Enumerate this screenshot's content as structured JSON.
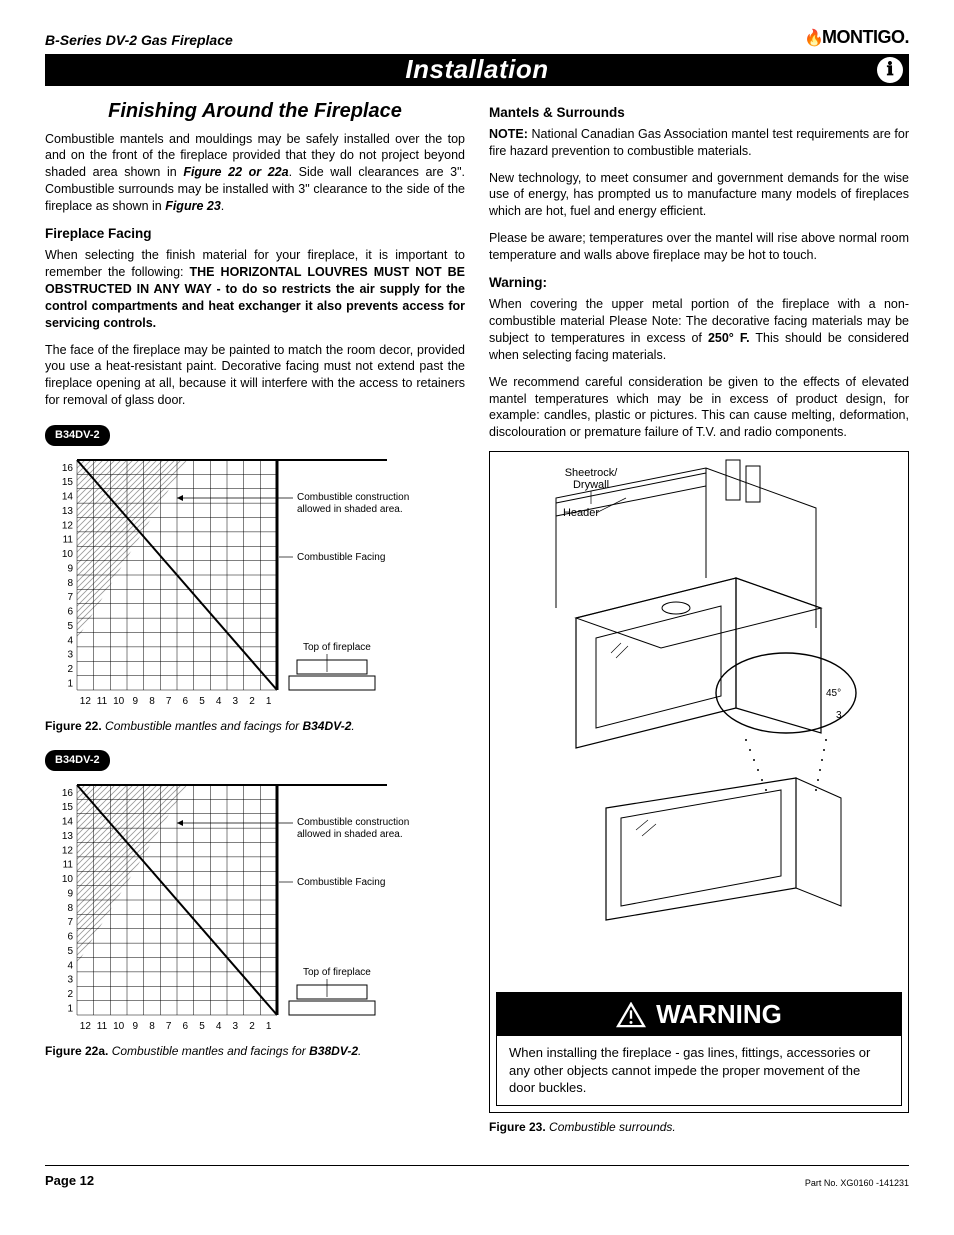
{
  "header": {
    "product": "B-Series DV-2 Gas Fireplace",
    "brand_flame": "(",
    "brand": "MONTIGO",
    "brand_dot": "."
  },
  "bar": {
    "title": "Installation",
    "icon": "i"
  },
  "left": {
    "section_title": "Finishing Around the Fireplace",
    "intro": "Combustible mantels and mouldings may be safely installed over the top and on the front of the fireplace provided that they do not project beyond shaded area shown in ",
    "intro_ref": "Figure 22 or 22a",
    "intro_after": ". Side wall clearances are 3\". Combustible surrounds may be installed with 3\" clearance to the side of the fireplace as shown in ",
    "intro_ref2": "Figure 23",
    "intro_end": ".",
    "facing_heading": "Fireplace Facing",
    "facing_p1_a": "When selecting the finish material for your fireplace, it is important to remember the following: ",
    "facing_p1_b": "THE HORIZONTAL LOUVRES MUST NOT BE OBSTRUCTED IN ANY WAY - to do so restricts the air supply for the control compartments and heat exchanger it also prevents access for servicing controls.",
    "facing_p2": "The face of the fireplace may be painted to match the room decor, provided you use a heat-resistant paint.  Decorative facing must not extend past the fireplace opening at all, because it will interfere with the access to retainers for removal of glass door.",
    "pill1": "B34DV-2",
    "pill2": "B34DV-2",
    "fig22": {
      "num": "Figure 22.",
      "desc_a": " Combustible mantles and facings for ",
      "desc_b": "B34DV-2",
      "desc_c": "."
    },
    "fig22a": {
      "num": "Figure 22a.",
      "desc_a": " Combustible mantles and facings for ",
      "desc_b": "B38DV-2",
      "desc_c": "."
    },
    "chart": {
      "y_labels": [
        "16",
        "15",
        "14",
        "13",
        "12",
        "11",
        "10",
        "9",
        "8",
        "7",
        "6",
        "5",
        "4",
        "3",
        "2",
        "1"
      ],
      "x_labels": [
        "12",
        "11",
        "10",
        "9",
        "8",
        "7",
        "6",
        "5",
        "4",
        "3",
        "2",
        "1"
      ],
      "annot1": "Combustible construction allowed in shaded area.",
      "annot2": "Combustible Facing",
      "annot3": "Top   of   fireplace",
      "hatch_color": "#cccccc",
      "grid_color": "#000000",
      "thick_line": 2
    }
  },
  "right": {
    "mantels_heading": "Mantels & Surrounds",
    "note_label": "NOTE:",
    "note_text": " National Canadian Gas Association mantel test requirements are for fire hazard prevention to combustible materials.",
    "p2": "New technology, to meet consumer and government demands for the wise use of energy, has prompted us to manufacture many models of fireplaces which are hot, fuel and energy efficient.",
    "p3": "Please be aware; temperatures over the mantel will rise above normal room temperature and walls above fireplace may be hot to touch.",
    "warn_heading": "Warning:",
    "warn_p1_a": "When covering the upper metal portion of the fireplace with a non-combustible material Please Note: The decorative facing materials may be subject to temperatures in excess of ",
    "warn_p1_b": "250° F.",
    "warn_p1_c": "  This should be considered when selecting facing materials.",
    "warn_p2": "We recommend careful consideration be given to the effects of elevated mantel temperatures which may be in excess of product design, for example: candles, plastic or pictures.  This can cause melting, deformation, discolouration or premature failure of T.V. and radio components.",
    "fig23_labels": {
      "sheetrock": "Sheetrock/",
      "drywall": "Drywall",
      "header": "Header",
      "angle": "45°",
      "dist": "3"
    },
    "warning_title": "WARNING",
    "warning_body": "When installing the fireplace - gas lines, fittings, accessories or any other objects cannot impede the proper movement of the door buckles.",
    "fig23": {
      "num": "Figure 23.",
      "desc": " Combustible surrounds."
    }
  },
  "footer": {
    "page": "Page 12",
    "part": "Part No. XG0160 -141231"
  }
}
